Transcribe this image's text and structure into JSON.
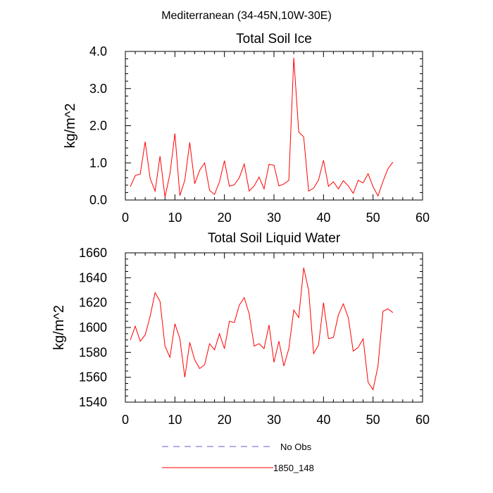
{
  "figure": {
    "suptitle": "Mediterranean (34-45N,10W-30E)",
    "legend": [
      {
        "label": "No Obs",
        "color": "#6a5acd",
        "style": "dashed"
      },
      {
        "label": "1850_148",
        "color": "#ff0000",
        "style": "solid"
      }
    ]
  },
  "chart_data": [
    {
      "type": "line",
      "title": "Total Soil Ice",
      "xlabel": "",
      "ylabel": "kg/m^2",
      "xlim": [
        0,
        60
      ],
      "ylim": [
        0,
        4
      ],
      "xticks": [
        0,
        10,
        20,
        30,
        40,
        50,
        60
      ],
      "xtick_labels": [
        "0",
        "10",
        "20",
        "30",
        "40",
        "50",
        "60"
      ],
      "yticks": [
        0,
        1,
        2,
        3,
        4
      ],
      "ytick_labels": [
        "0.0",
        "1.0",
        "2.0",
        "3.0",
        "4.0"
      ],
      "grid": false,
      "series": [
        {
          "name": "1850_148",
          "color": "#ff0000",
          "x": [
            1,
            2,
            3,
            4,
            5,
            6,
            7,
            8,
            9,
            10,
            11,
            12,
            13,
            14,
            15,
            16,
            17,
            18,
            19,
            20,
            21,
            22,
            23,
            24,
            25,
            26,
            27,
            28,
            29,
            30,
            31,
            32,
            33,
            34,
            35,
            36,
            37,
            38,
            39,
            40,
            41,
            42,
            43,
            44,
            45,
            46,
            47,
            48,
            49,
            50,
            51,
            52,
            53,
            54
          ],
          "y": [
            0.36,
            0.66,
            0.7,
            1.57,
            0.58,
            0.24,
            1.18,
            0.08,
            0.7,
            1.79,
            0.12,
            0.53,
            1.55,
            0.44,
            0.8,
            1.0,
            0.26,
            0.15,
            0.49,
            1.06,
            0.37,
            0.41,
            0.6,
            0.97,
            0.24,
            0.38,
            0.62,
            0.3,
            0.96,
            0.94,
            0.38,
            0.43,
            0.53,
            3.83,
            1.83,
            1.7,
            0.24,
            0.32,
            0.54,
            1.07,
            0.37,
            0.49,
            0.3,
            0.52,
            0.38,
            0.18,
            0.53,
            0.46,
            0.71,
            0.36,
            0.11,
            0.5,
            0.84,
            1.02
          ]
        }
      ]
    },
    {
      "type": "line",
      "title": "Total Soil Liquid Water",
      "xlabel": "",
      "ylabel": "kg/m^2",
      "xlim": [
        0,
        60
      ],
      "ylim": [
        1540,
        1660
      ],
      "xticks": [
        0,
        10,
        20,
        30,
        40,
        50,
        60
      ],
      "xtick_labels": [
        "0",
        "10",
        "20",
        "30",
        "40",
        "50",
        "60"
      ],
      "yticks": [
        1540,
        1560,
        1580,
        1600,
        1620,
        1640,
        1660
      ],
      "ytick_labels": [
        "1540",
        "1560",
        "1580",
        "1600",
        "1620",
        "1640",
        "1660"
      ],
      "grid": false,
      "series": [
        {
          "name": "1850_148",
          "color": "#ff0000",
          "x": [
            1,
            2,
            3,
            4,
            5,
            6,
            7,
            8,
            9,
            10,
            11,
            12,
            13,
            14,
            15,
            16,
            17,
            18,
            19,
            20,
            21,
            22,
            23,
            24,
            25,
            26,
            27,
            28,
            29,
            30,
            31,
            32,
            33,
            34,
            35,
            36,
            37,
            38,
            39,
            40,
            41,
            42,
            43,
            44,
            45,
            46,
            47,
            48,
            49,
            50,
            51,
            52,
            53,
            54
          ],
          "y": [
            1590,
            1601,
            1589,
            1594,
            1609,
            1628,
            1621,
            1585,
            1576,
            1603,
            1591,
            1560,
            1588,
            1574,
            1567,
            1570,
            1587,
            1582,
            1595,
            1583,
            1605,
            1604,
            1618,
            1624,
            1611,
            1585,
            1587,
            1583,
            1602,
            1572,
            1589,
            1569,
            1583,
            1614,
            1608,
            1648,
            1630,
            1579,
            1586,
            1620,
            1591,
            1592,
            1610,
            1619,
            1608,
            1581,
            1584,
            1591,
            1556,
            1550,
            1569,
            1613,
            1615,
            1612
          ]
        }
      ]
    }
  ]
}
